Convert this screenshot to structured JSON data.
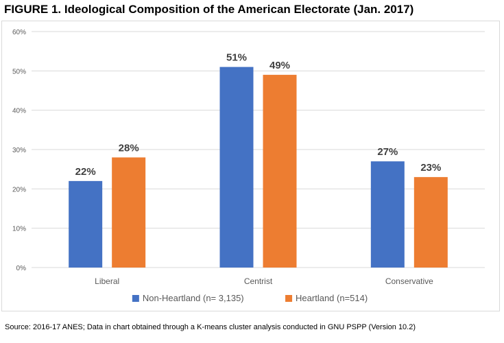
{
  "figure": {
    "title": "FIGURE 1.  Ideological Composition of the American Electorate (Jan. 2017)",
    "source": "Source:  2016-17 ANES; Data in chart obtained through a K-means cluster analysis conducted in GNU PSPP (Version 10.2)"
  },
  "colors": {
    "non_heartland": "#4472c4",
    "heartland": "#ed7d31",
    "gridline": "#d9d9d9",
    "axis_text": "#595959"
  },
  "chart_data": {
    "type": "bar",
    "title": "",
    "xlabel": "",
    "ylabel": "",
    "categories": [
      "Liberal",
      "Centrist",
      "Conservative"
    ],
    "series": [
      {
        "name": "Non-Heartland (n= 3,135)",
        "values": [
          22,
          51,
          27
        ],
        "labels": [
          "22%",
          "51%",
          "27%"
        ]
      },
      {
        "name": "Heartland (n=514)",
        "values": [
          28,
          49,
          23
        ],
        "labels": [
          "28%",
          "49%",
          "23%"
        ]
      }
    ],
    "ylim": [
      0,
      60
    ],
    "yticks": [
      "0%",
      "10%",
      "20%",
      "30%",
      "40%",
      "50%",
      "60%"
    ],
    "grid": true,
    "legend_position": "bottom"
  }
}
